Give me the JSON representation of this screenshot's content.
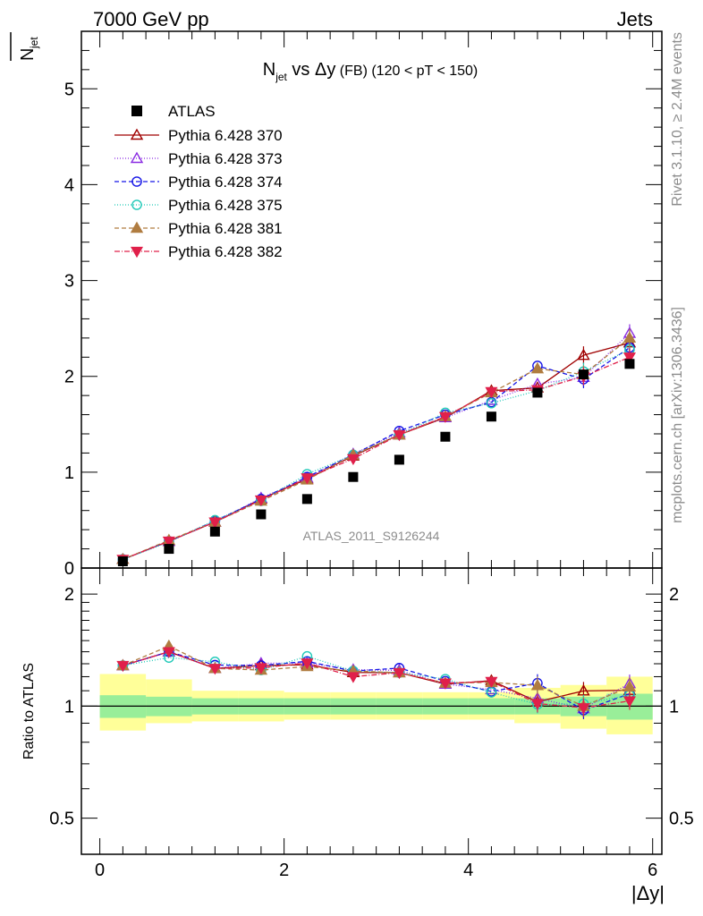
{
  "header": {
    "left": "7000 GeV pp",
    "right": "Jets"
  },
  "side_labels": {
    "rivet": "Rivet 3.1.10, ≥ 2.4M events",
    "mcplots": "mcplots.cern.ch [arXiv:1306.3436]"
  },
  "chart_data": {
    "type": "line",
    "title": {
      "main": "N",
      "sub": "jet",
      "rest": " vs Δy",
      "small": " (FB) (120 < pT < 150)"
    },
    "watermark": "ATLAS_2011_S9126244",
    "xlabel": "|Δy|",
    "ylabel_main": "N",
    "ylabel_sub": "jet",
    "ylabel_ratio": "Ratio to ATLAS",
    "xlim": [
      -0.2,
      6.1
    ],
    "ylim_main": [
      0,
      5.6
    ],
    "ylim_ratio": [
      0.4,
      2.35
    ],
    "x_ticks": [
      "0",
      "2",
      "4",
      "6"
    ],
    "y_ticks_main": [
      "0",
      "1",
      "2",
      "3",
      "4",
      "5"
    ],
    "y_ticks_ratio": [
      "0.5",
      "1",
      "2"
    ],
    "legend_position": "top-left",
    "x": [
      0.25,
      0.75,
      1.25,
      1.75,
      2.25,
      2.75,
      3.25,
      3.75,
      4.25,
      4.75,
      5.25,
      5.75
    ],
    "data": {
      "name": "ATLAS",
      "values": [
        0.07,
        0.2,
        0.38,
        0.56,
        0.72,
        0.95,
        1.13,
        1.37,
        1.58,
        1.83,
        2.02,
        2.13
      ]
    },
    "series": [
      {
        "name": "Pythia 6.428 370",
        "color": "#a00000",
        "marker": "triangle-open",
        "dash": "",
        "values": [
          0.09,
          0.28,
          0.48,
          0.72,
          0.93,
          1.17,
          1.39,
          1.57,
          1.85,
          1.88,
          2.22,
          2.35
        ]
      },
      {
        "name": "Pythia 6.428 373",
        "color": "#8a2be2",
        "marker": "triangle-open",
        "dash": "1,2",
        "values": [
          0.09,
          0.28,
          0.48,
          0.73,
          0.94,
          1.19,
          1.41,
          1.57,
          1.75,
          1.92,
          1.99,
          2.45
        ]
      },
      {
        "name": "Pythia 6.428 374",
        "color": "#1414e6",
        "marker": "circle-open",
        "dash": "5,3",
        "values": [
          0.09,
          0.28,
          0.49,
          0.72,
          0.95,
          1.18,
          1.43,
          1.6,
          1.73,
          2.11,
          1.97,
          2.3
        ]
      },
      {
        "name": "Pythia 6.428 375",
        "color": "#20c9b8",
        "marker": "circle-open",
        "dash": "1,2",
        "values": [
          0.09,
          0.27,
          0.5,
          0.7,
          0.98,
          1.18,
          1.39,
          1.62,
          1.72,
          1.85,
          2.05,
          2.28
        ]
      },
      {
        "name": "Pythia 6.428 381",
        "color": "#b07c40",
        "marker": "triangle-filled",
        "dash": "5,3",
        "values": [
          0.09,
          0.29,
          0.48,
          0.7,
          0.92,
          1.18,
          1.39,
          1.58,
          1.83,
          2.08,
          2.02,
          2.4
        ]
      },
      {
        "name": "Pythia 6.428 382",
        "color": "#e0204a",
        "marker": "triangle-down-filled",
        "dash": "6,2,1,2",
        "values": [
          0.09,
          0.28,
          0.48,
          0.71,
          0.94,
          1.14,
          1.39,
          1.58,
          1.84,
          1.86,
          2.0,
          2.2
        ]
      }
    ],
    "ratio_bands": [
      {
        "x0": 0.0,
        "x1": 0.5,
        "yellow": [
          0.86,
          1.22
        ],
        "green": [
          0.93,
          1.07
        ]
      },
      {
        "x0": 0.5,
        "x1": 1.0,
        "yellow": [
          0.9,
          1.18
        ],
        "green": [
          0.94,
          1.06
        ]
      },
      {
        "x0": 1.0,
        "x1": 1.5,
        "yellow": [
          0.91,
          1.1
        ],
        "green": [
          0.95,
          1.05
        ]
      },
      {
        "x0": 1.5,
        "x1": 2.0,
        "yellow": [
          0.91,
          1.1
        ],
        "green": [
          0.95,
          1.05
        ]
      },
      {
        "x0": 2.0,
        "x1": 2.5,
        "yellow": [
          0.92,
          1.09
        ],
        "green": [
          0.95,
          1.05
        ]
      },
      {
        "x0": 2.5,
        "x1": 3.0,
        "yellow": [
          0.92,
          1.09
        ],
        "green": [
          0.95,
          1.05
        ]
      },
      {
        "x0": 3.0,
        "x1": 3.5,
        "yellow": [
          0.92,
          1.09
        ],
        "green": [
          0.95,
          1.05
        ]
      },
      {
        "x0": 3.5,
        "x1": 4.0,
        "yellow": [
          0.92,
          1.09
        ],
        "green": [
          0.95,
          1.05
        ]
      },
      {
        "x0": 4.0,
        "x1": 4.5,
        "yellow": [
          0.92,
          1.09
        ],
        "green": [
          0.95,
          1.05
        ]
      },
      {
        "x0": 4.5,
        "x1": 5.0,
        "yellow": [
          0.9,
          1.12
        ],
        "green": [
          0.95,
          1.05
        ]
      },
      {
        "x0": 5.0,
        "x1": 5.5,
        "yellow": [
          0.87,
          1.14
        ],
        "green": [
          0.94,
          1.06
        ]
      },
      {
        "x0": 5.5,
        "x1": 6.0,
        "yellow": [
          0.84,
          1.2
        ],
        "green": [
          0.92,
          1.08
        ]
      }
    ]
  }
}
